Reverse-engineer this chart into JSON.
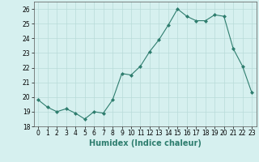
{
  "x": [
    0,
    1,
    2,
    3,
    4,
    5,
    6,
    7,
    8,
    9,
    10,
    11,
    12,
    13,
    14,
    15,
    16,
    17,
    18,
    19,
    20,
    21,
    22,
    23
  ],
  "y": [
    19.8,
    19.3,
    19.0,
    19.2,
    18.9,
    18.5,
    19.0,
    18.9,
    19.8,
    21.6,
    21.5,
    22.1,
    23.1,
    23.9,
    24.9,
    26.0,
    25.5,
    25.2,
    25.2,
    25.6,
    25.5,
    23.3,
    22.1,
    20.3
  ],
  "line_color": "#2e7d6e",
  "marker": "D",
  "marker_size": 2,
  "bg_color": "#d6f0ef",
  "grid_color": "#b8dbd9",
  "xlabel": "Humidex (Indice chaleur)",
  "ylim": [
    18,
    26.5
  ],
  "xlim": [
    -0.5,
    23.5
  ],
  "yticks": [
    18,
    19,
    20,
    21,
    22,
    23,
    24,
    25,
    26
  ],
  "xticks": [
    0,
    1,
    2,
    3,
    4,
    5,
    6,
    7,
    8,
    9,
    10,
    11,
    12,
    13,
    14,
    15,
    16,
    17,
    18,
    19,
    20,
    21,
    22,
    23
  ],
  "tick_fontsize": 5.5,
  "label_fontsize": 7.0
}
